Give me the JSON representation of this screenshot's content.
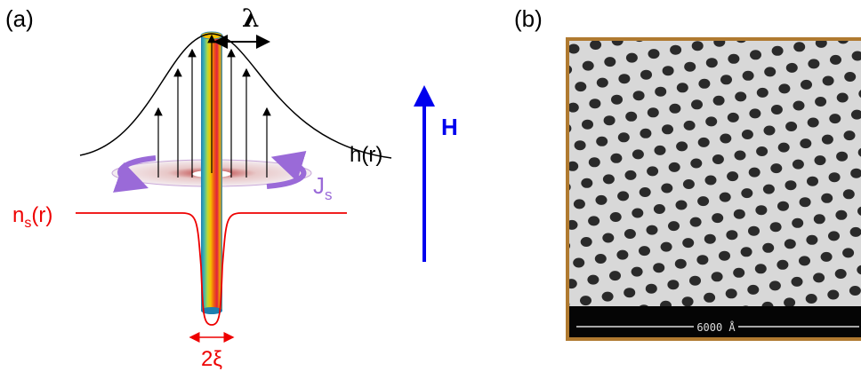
{
  "panel_a": {
    "label": "(a)",
    "lambda": "λ",
    "field_profile": "h(r)",
    "current": {
      "base": "J",
      "sub": "s"
    },
    "density": {
      "base": "n",
      "sub": "s",
      "rest": "(r)"
    },
    "field": "H",
    "core": "2ξ"
  },
  "panel_b": {
    "label": "(b)",
    "scale_bar": "6000 Å"
  }
}
